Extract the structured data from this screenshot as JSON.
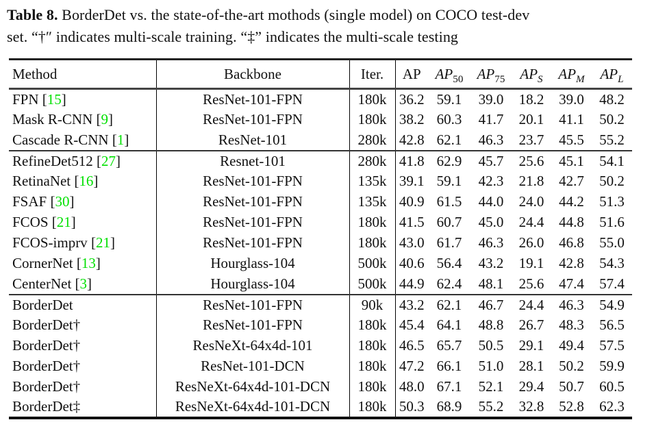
{
  "caption": {
    "label": "Table 8.",
    "line1_rest": " BorderDet vs. the state-of-the-art mothods (single model) on COCO test-dev",
    "line2": "set. “†″ indicates multi-scale training. “‡” indicates the multi-scale testing"
  },
  "colors": {
    "citation": "#00e000"
  },
  "table": {
    "headers": {
      "method": "Method",
      "backbone": "Backbone",
      "iter": "Iter.",
      "metrics": [
        {
          "text": "AP",
          "sub": "",
          "text_italic": false,
          "sub_italic": false
        },
        {
          "text": "AP",
          "sub": "50",
          "text_italic": true,
          "sub_italic": false
        },
        {
          "text": "AP",
          "sub": "75",
          "text_italic": true,
          "sub_italic": false
        },
        {
          "text": "AP",
          "sub": "S",
          "text_italic": true,
          "sub_italic": true
        },
        {
          "text": "AP",
          "sub": "M",
          "text_italic": true,
          "sub_italic": true
        },
        {
          "text": "AP",
          "sub": "L",
          "text_italic": true,
          "sub_italic": true
        }
      ]
    },
    "groups": [
      {
        "rows": [
          {
            "method": "FPN",
            "cite": "15",
            "backbone": "ResNet-101-FPN",
            "iter": "180k",
            "values": [
              "36.2",
              "59.1",
              "39.0",
              "18.2",
              "39.0",
              "48.2"
            ]
          },
          {
            "method": "Mask R-CNN",
            "cite": "9",
            "backbone": "ResNet-101-FPN",
            "iter": "180k",
            "values": [
              "38.2",
              "60.3",
              "41.7",
              "20.1",
              "41.1",
              "50.2"
            ]
          },
          {
            "method": "Cascade R-CNN",
            "cite": "1",
            "backbone": "ResNet-101",
            "iter": "280k",
            "values": [
              "42.8",
              "62.1",
              "46.3",
              "23.7",
              "45.5",
              "55.2"
            ]
          }
        ]
      },
      {
        "rows": [
          {
            "method": "RefineDet512",
            "cite": "27",
            "backbone": "Resnet-101",
            "iter": "280k",
            "values": [
              "41.8",
              "62.9",
              "45.7",
              "25.6",
              "45.1",
              "54.1"
            ]
          },
          {
            "method": "RetinaNet",
            "cite": "16",
            "backbone": "ResNet-101-FPN",
            "iter": "135k",
            "values": [
              "39.1",
              "59.1",
              "42.3",
              "21.8",
              "42.7",
              "50.2"
            ]
          },
          {
            "method": "FSAF",
            "cite": "30",
            "backbone": "ResNet-101-FPN",
            "iter": "135k",
            "values": [
              "40.9",
              "61.5",
              "44.0",
              "24.0",
              "44.2",
              "51.3"
            ]
          },
          {
            "method": "FCOS",
            "cite": "21",
            "backbone": "ResNet-101-FPN",
            "iter": "180k",
            "values": [
              "41.5",
              "60.7",
              "45.0",
              "24.4",
              "44.8",
              "51.6"
            ]
          },
          {
            "method": "FCOS-imprv",
            "cite": "21",
            "backbone": "ResNet-101-FPN",
            "iter": "180k",
            "values": [
              "43.0",
              "61.7",
              "46.3",
              "26.0",
              "46.8",
              "55.0"
            ]
          },
          {
            "method": "CornerNet",
            "cite": "13",
            "backbone": "Hourglass-104",
            "iter": "500k",
            "values": [
              "40.6",
              "56.4",
              "43.2",
              "19.1",
              "42.8",
              "54.3"
            ]
          },
          {
            "method": "CenterNet",
            "cite": "3",
            "backbone": "Hourglass-104",
            "iter": "500k",
            "values": [
              "44.9",
              "62.4",
              "48.1",
              "25.6",
              "47.4",
              "57.4"
            ]
          }
        ]
      },
      {
        "rows": [
          {
            "method": "BorderDet",
            "cite": null,
            "backbone": "ResNet-101-FPN",
            "iter": "90k",
            "values": [
              "43.2",
              "62.1",
              "46.7",
              "24.4",
              "46.3",
              "54.9"
            ]
          },
          {
            "method": "BorderDet†",
            "cite": null,
            "backbone": "ResNet-101-FPN",
            "iter": "180k",
            "values": [
              "45.4",
              "64.1",
              "48.8",
              "26.7",
              "48.3",
              "56.5"
            ]
          },
          {
            "method": "BorderDet†",
            "cite": null,
            "backbone": "ResNeXt-64x4d-101",
            "iter": "180k",
            "values": [
              "46.5",
              "65.7",
              "50.5",
              "29.1",
              "49.4",
              "57.5"
            ]
          },
          {
            "method": "BorderDet†",
            "cite": null,
            "backbone": "ResNet-101-DCN",
            "iter": "180k",
            "values": [
              "47.2",
              "66.1",
              "51.0",
              "28.1",
              "50.2",
              "59.9"
            ]
          },
          {
            "method": "BorderDet†",
            "cite": null,
            "backbone": "ResNeXt-64x4d-101-DCN",
            "iter": "180k",
            "values": [
              "48.0",
              "67.1",
              "52.1",
              "29.4",
              "50.7",
              "60.5"
            ]
          },
          {
            "method": "BorderDet‡",
            "cite": null,
            "backbone": "ResNeXt-64x4d-101-DCN",
            "iter": "180k",
            "values": [
              "50.3",
              "68.9",
              "55.2",
              "32.8",
              "52.8",
              "62.3"
            ]
          }
        ]
      }
    ]
  }
}
